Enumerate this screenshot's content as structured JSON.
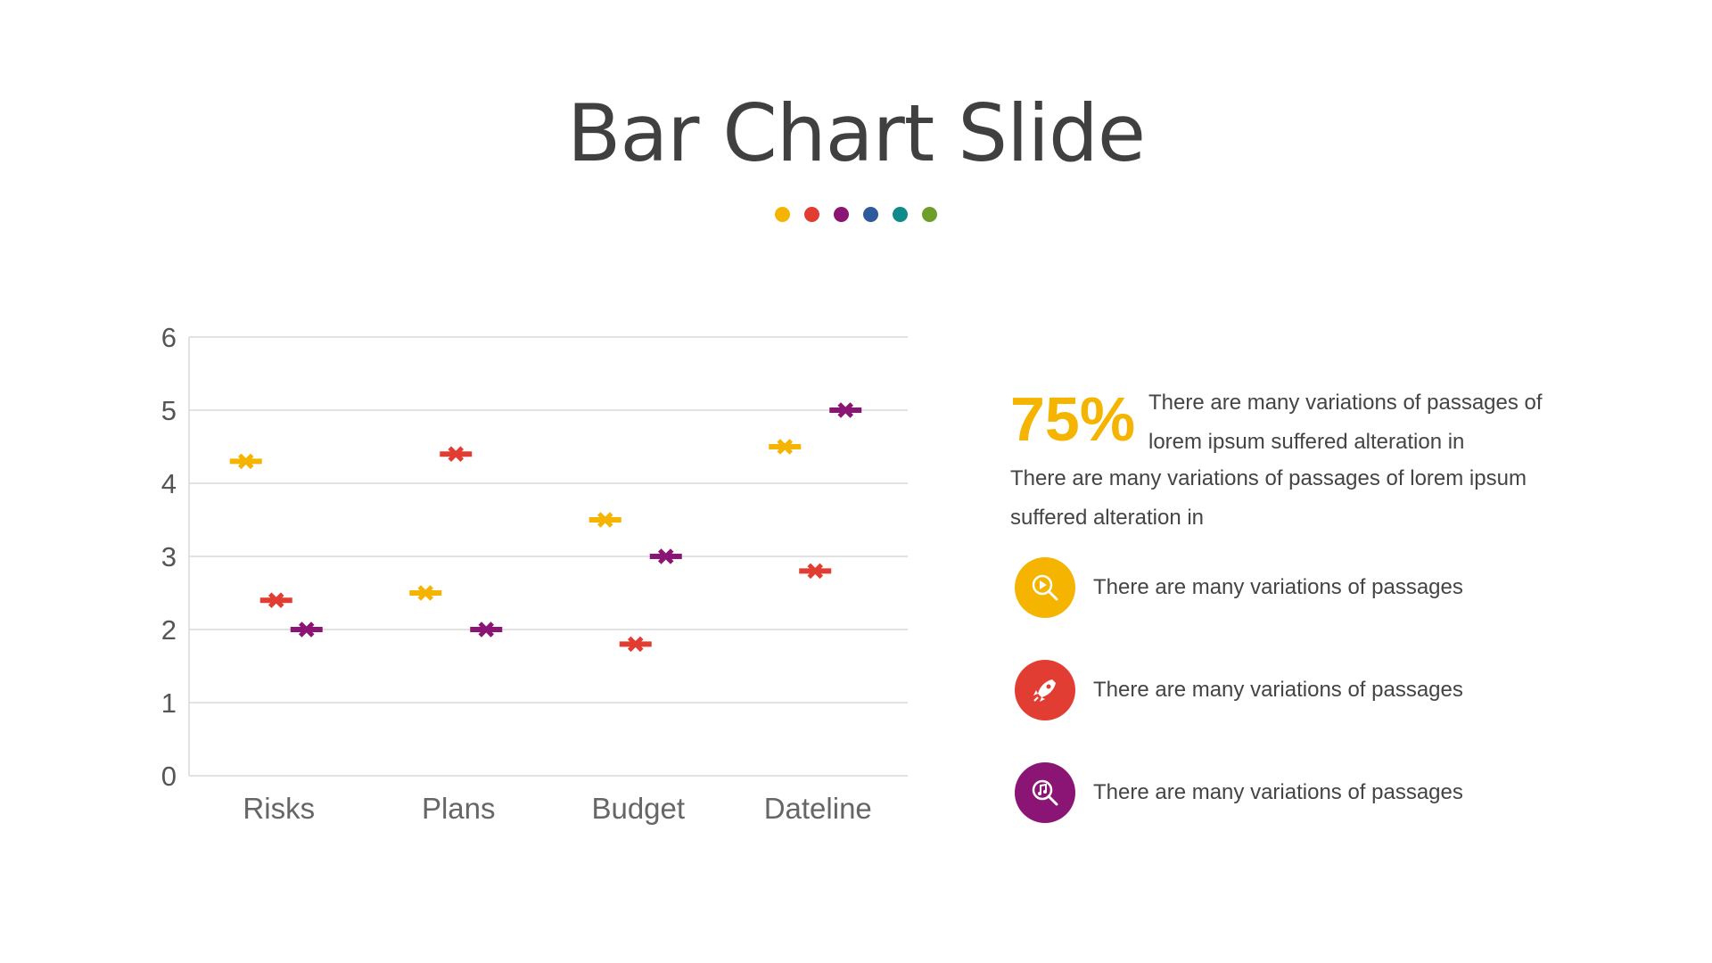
{
  "slide": {
    "title": "Bar Chart Slide",
    "dots": [
      "#F5B400",
      "#E23D32",
      "#8B1574",
      "#2E5C9A",
      "#0F8A8A",
      "#6E9E2A"
    ]
  },
  "chart_data": {
    "type": "scatter",
    "categories": [
      "Risks",
      "Plans",
      "Budget",
      "Dateline"
    ],
    "ylim": [
      0,
      6
    ],
    "yticks": [
      "0",
      "1",
      "2",
      "3",
      "4",
      "5",
      "6"
    ],
    "grid": true,
    "legend": "none",
    "series": [
      {
        "color": "#F5B400",
        "values": [
          4.3,
          2.5,
          3.5,
          4.5
        ]
      },
      {
        "color": "#E23D32",
        "values": [
          2.4,
          4.4,
          1.8,
          2.8
        ]
      },
      {
        "color": "#8B1574",
        "values": [
          2.0,
          2.0,
          3.0,
          5.0
        ]
      }
    ]
  },
  "panel": {
    "percent": "75%",
    "intro_line1": "There are many variations of passages of lorem ipsum suffered alteration in",
    "intro_line2": "There are many variations of passages of lorem ipsum suffered alteration in",
    "features": [
      {
        "icon": "play-search-icon",
        "color": "#F5B400",
        "text": "There are many variations of passages"
      },
      {
        "icon": "rocket-icon",
        "color": "#E23D32",
        "text": "There are many variations of passages"
      },
      {
        "icon": "music-search-icon",
        "color": "#8B1574",
        "text": "There are many variations of passages"
      }
    ]
  }
}
